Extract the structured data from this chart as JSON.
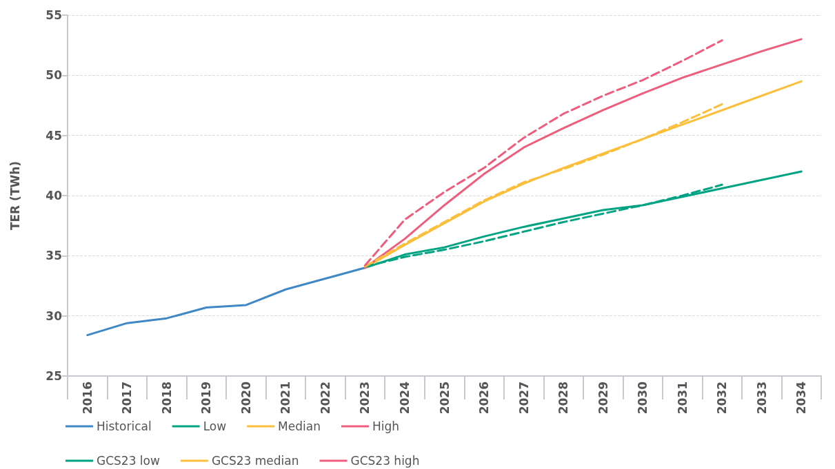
{
  "chart_data": {
    "type": "line",
    "ylabel": "TER (TWh)",
    "categories": [
      "2016",
      "2017",
      "2018",
      "2019",
      "2020",
      "2021",
      "2022",
      "2023",
      "2024",
      "2025",
      "2026",
      "2027",
      "2028",
      "2029",
      "2030",
      "2031",
      "2032",
      "2033",
      "2034"
    ],
    "ylim": [
      25,
      55
    ],
    "yticks": [
      25,
      30,
      35,
      40,
      45,
      50,
      55
    ],
    "grid": "y",
    "legend": "bottom",
    "marker": "none",
    "series": [
      {
        "name": "Historical",
        "color": "#3f88c5",
        "line_style": "solid",
        "values": [
          28.4,
          29.4,
          29.8,
          30.7,
          30.9,
          32.2,
          33.1,
          34.0,
          null,
          null,
          null,
          null,
          null,
          null,
          null,
          null,
          null,
          null,
          null
        ]
      },
      {
        "name": "Low",
        "color": "#00a382",
        "line_style": "solid",
        "values": [
          null,
          null,
          null,
          null,
          null,
          null,
          null,
          34.0,
          35.1,
          35.7,
          36.6,
          37.4,
          38.1,
          38.8,
          39.2,
          39.9,
          40.6,
          41.3,
          42.0
        ]
      },
      {
        "name": "Median",
        "color": "#fcbf3b",
        "line_style": "solid",
        "values": [
          null,
          null,
          null,
          null,
          null,
          null,
          null,
          34.0,
          35.9,
          37.7,
          39.5,
          41.0,
          42.3,
          43.5,
          44.7,
          45.9,
          47.1,
          48.3,
          49.5
        ]
      },
      {
        "name": "High",
        "color": "#ee5d7e",
        "line_style": "solid",
        "values": [
          null,
          null,
          null,
          null,
          null,
          null,
          null,
          34.0,
          36.4,
          39.2,
          41.8,
          44.0,
          45.6,
          47.1,
          48.5,
          49.8,
          50.9,
          52.0,
          53.0
        ]
      },
      {
        "name": "GCS23 low",
        "color": "#00a382",
        "line_style": "dashed",
        "values": [
          null,
          null,
          null,
          null,
          null,
          null,
          null,
          34.1,
          34.9,
          35.5,
          36.2,
          37.0,
          37.8,
          38.5,
          39.2,
          40.0,
          40.9,
          null,
          null
        ]
      },
      {
        "name": "GCS23 median",
        "color": "#fcbf3b",
        "line_style": "dashed",
        "values": [
          null,
          null,
          null,
          null,
          null,
          null,
          null,
          34.1,
          36.0,
          37.8,
          39.6,
          41.1,
          42.2,
          43.4,
          44.7,
          46.1,
          47.6,
          null,
          null
        ]
      },
      {
        "name": "GCS23 high",
        "color": "#ee5d7e",
        "line_style": "dashed",
        "values": [
          null,
          null,
          null,
          null,
          null,
          null,
          null,
          34.2,
          38.0,
          40.3,
          42.3,
          44.8,
          46.8,
          48.3,
          49.6,
          51.2,
          52.9,
          null,
          null
        ]
      }
    ]
  }
}
